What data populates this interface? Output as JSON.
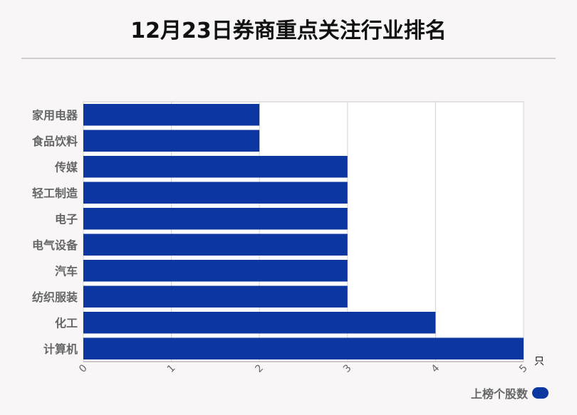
{
  "chart_data": {
    "type": "bar",
    "orientation": "horizontal",
    "title": "12月23日券商重点关注行业排名",
    "categories": [
      "家用电器",
      "食品饮料",
      "传媒",
      "轻工制造",
      "电子",
      "电气设备",
      "汽车",
      "纺织服装",
      "化工",
      "计算机"
    ],
    "series": [
      {
        "name": "上榜个股数",
        "values": [
          2,
          2,
          3,
          3,
          3,
          3,
          3,
          3,
          4,
          5
        ]
      }
    ],
    "xlabel": "只",
    "xlim": [
      0,
      5
    ],
    "xticks": [
      "0",
      "1",
      "2",
      "3",
      "4",
      "5"
    ],
    "grid": true,
    "legend_position": "bottom-right",
    "bar_color": "#0d37a0"
  }
}
